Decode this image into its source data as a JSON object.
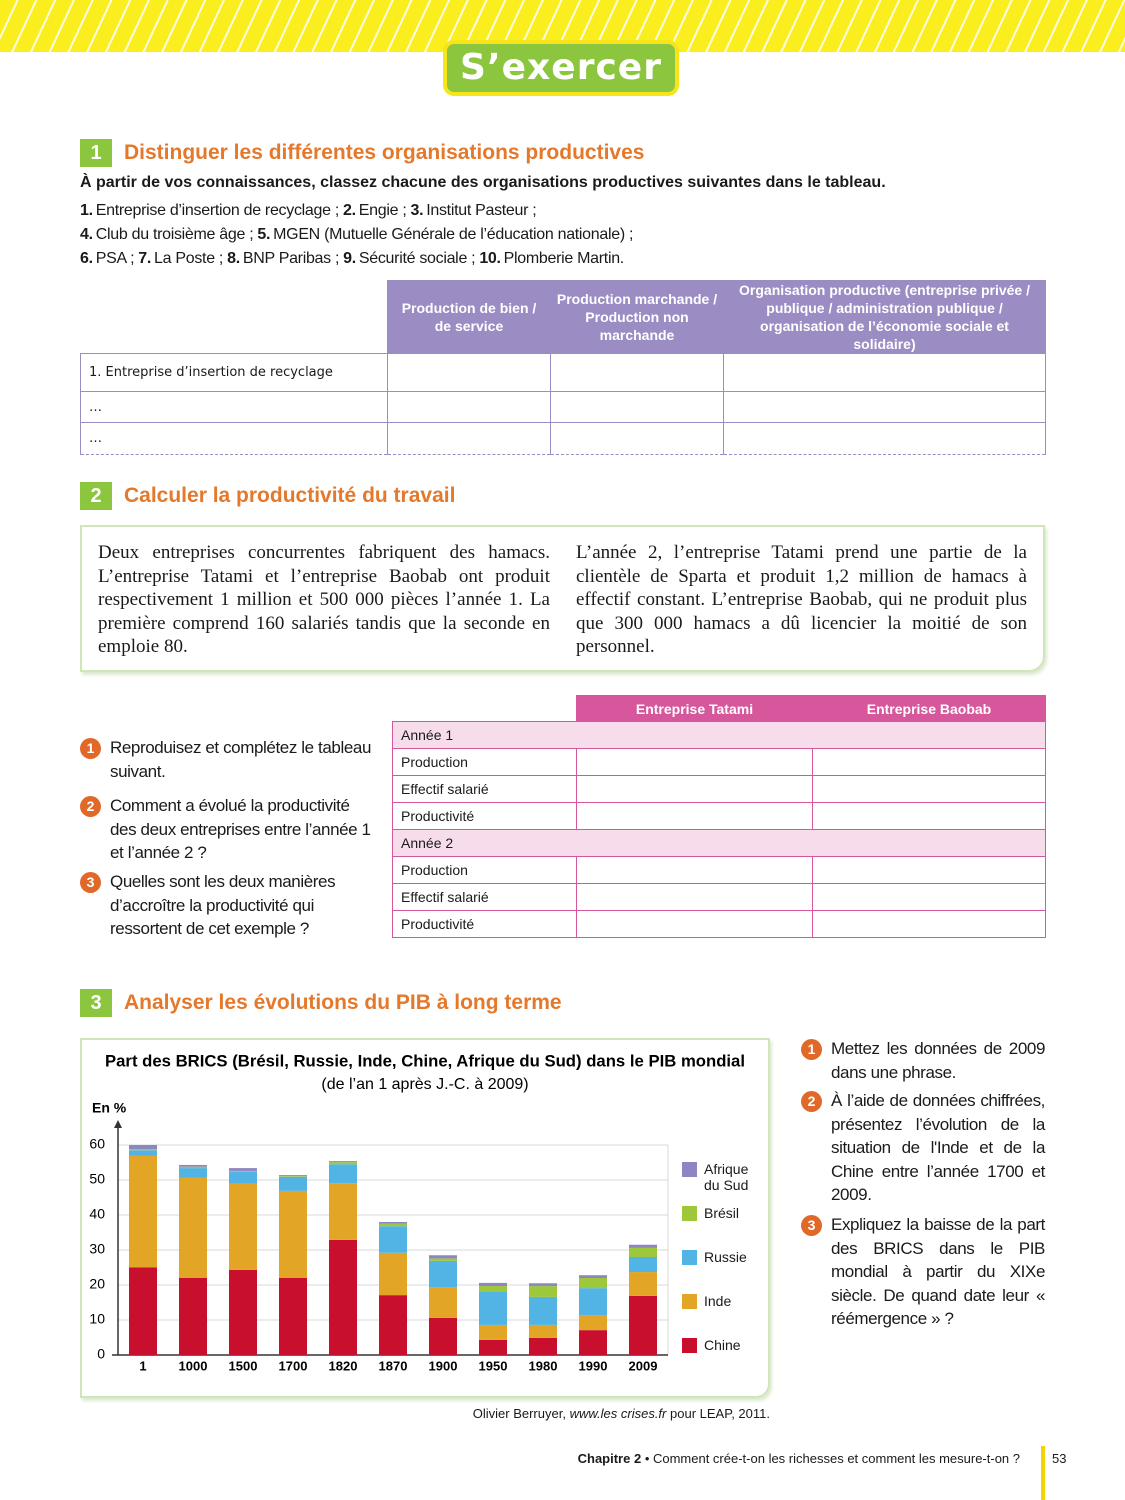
{
  "header": {
    "title": "S’exercer"
  },
  "exercise1": {
    "number": "1",
    "title": "Distinguer les différentes organisations productives",
    "instruction": "À partir de vos connaissances, classez chacune des organisations productives suivantes dans le tableau.",
    "lines": [
      [
        {
          "num": "1.",
          "text": "Entreprise d’insertion de recyclage ;"
        },
        {
          "num": "2.",
          "text": "Engie ;"
        },
        {
          "num": "3.",
          "text": "Institut Pasteur ;"
        }
      ],
      [
        {
          "num": "4.",
          "text": "Club du troisième âge ;"
        },
        {
          "num": "5.",
          "text": "MGEN (Mutuelle Générale de l’éducation nationale) ;"
        }
      ],
      [
        {
          "num": "6.",
          "text": "PSA ;"
        },
        {
          "num": "7.",
          "text": "La Poste ;"
        },
        {
          "num": "8.",
          "text": "BNP Paribas ;"
        },
        {
          "num": "9.",
          "text": "Sécurité sociale ;"
        },
        {
          "num": "10.",
          "text": "Plomberie Martin."
        }
      ]
    ],
    "table": {
      "columns": [
        "Production de bien / de service",
        "Production marchande / Production non marchande",
        "Organisation productive (entreprise privée / publique / administration publique / organisation de l’économie sociale et solidaire)"
      ],
      "rows": [
        "1. Entreprise d’insertion de recyclage",
        "…",
        "…"
      ]
    }
  },
  "exercise2": {
    "number": "2",
    "title": "Calculer la productivité du travail",
    "paragraphs": [
      "Deux entreprises concurrentes fabriquent des hamacs. L’entreprise Tatami et l’entreprise Baobab ont produit respectivement 1 million et 500 000 pièces l’année 1. La première comprend 160 salariés tandis que la seconde en emploie 80.",
      "L’année 2, l’entreprise Tatami prend une partie de la clientèle de Sparta et produit 1,2 million de hamacs à effectif constant. L’entreprise Baobab, qui ne produit plus que 300 000 hamacs a dû licencier la moitié de son personnel."
    ],
    "questions": [
      {
        "number": "1",
        "text": "Reproduisez et complétez le tableau suivant."
      },
      {
        "number": "2",
        "text": "Comment a évolué la productivité des deux entreprises entre l’année 1 et l’année 2 ?"
      },
      {
        "number": "3",
        "text": "Quelles sont les deux manières d’accroître la productivité qui ressortent de cet exemple ?"
      }
    ],
    "table": {
      "columns": [
        "Entreprise Tatami",
        "Entreprise Baobab"
      ],
      "groups": [
        {
          "label": "Année 1",
          "rows": [
            "Production",
            "Effectif salarié",
            "Productivité"
          ]
        },
        {
          "label": "Année 2",
          "rows": [
            "Production",
            "Effectif salarié",
            "Productivité"
          ]
        }
      ]
    }
  },
  "exercise3": {
    "number": "3",
    "title": "Analyser les évolutions du PIB à long terme",
    "questions": [
      {
        "number": "1",
        "text": "Mettez les données de 2009 dans une phrase."
      },
      {
        "number": "2",
        "text": "À l’aide de données chiffrées, présentez l’évolution de la situation de l'Inde et de la Chine entre l’année 1700 et 2009."
      },
      {
        "number": "3",
        "text": "Expliquez la baisse de la part des BRICS dans le PIB mondial à partir du XIXe siècle. De quand date leur « réémergence » ?"
      }
    ],
    "source": [
      "Olivier Berruyer,",
      "www.les crises.fr",
      "pour LEAP, 2011."
    ]
  },
  "chart_data": {
    "type": "stacked-bar",
    "title": "Part des BRICS (Brésil, Russie, Inde, Chine, Afrique du Sud) dans le PIB mondial",
    "subtitle": "(de l’an 1 après J.-C. à 2009)",
    "y_label": "En %",
    "categories": [
      "1",
      "1000",
      "1500",
      "1700",
      "1820",
      "1870",
      "1900",
      "1950",
      "1980",
      "1990",
      "2009"
    ],
    "series": [
      {
        "name": "Chine",
        "color": "#c8102e",
        "values": [
          25,
          22,
          24.3,
          22,
          32.9,
          17.1,
          10.6,
          4.3,
          4.9,
          7.1,
          16.9
        ]
      },
      {
        "name": "Inde",
        "color": "#e3a526",
        "values": [
          32,
          28.6,
          24.6,
          24.9,
          16.2,
          12.1,
          8.8,
          4.3,
          3.7,
          4.3,
          6.8
        ]
      },
      {
        "name": "Russie",
        "color": "#52b4e5",
        "values": [
          1.5,
          2.8,
          3.4,
          4,
          5.4,
          7.6,
          7.5,
          9.4,
          8,
          7.7,
          4.3
        ]
      },
      {
        "name": "Brésil",
        "color": "#9dc83c",
        "values": [
          0.3,
          0.4,
          0.3,
          0.2,
          0.6,
          0.7,
          0.7,
          1.7,
          3.1,
          2.9,
          2.6
        ]
      },
      {
        "name": "Afrique du Sud",
        "color": "#8e86c1",
        "values": [
          1.2,
          0.5,
          0.8,
          0.3,
          0.3,
          0.5,
          0.9,
          0.9,
          0.8,
          0.8,
          0.9
        ]
      }
    ],
    "ylim": [
      0,
      60
    ],
    "yticks": [
      0,
      10,
      20,
      30,
      40,
      50,
      60
    ],
    "grid": true
  },
  "footer": {
    "chapter": "Chapitre 2",
    "text": "• Comment crée-t-on les richesses et comment les mesure-t-on ?",
    "page": "53"
  }
}
